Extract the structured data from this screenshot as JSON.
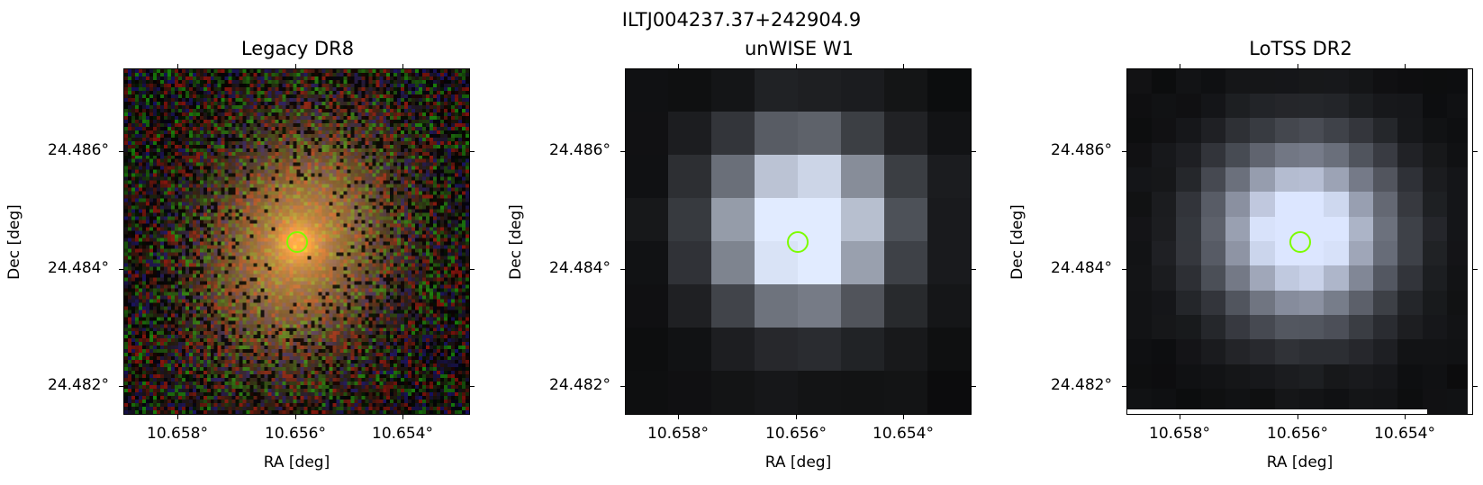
{
  "figure": {
    "title": "ILTJ004237.37+242904.9"
  },
  "panels": [
    {
      "title": "Legacy DR8",
      "xlabel": "RA [deg]",
      "ylabel": "Dec [deg]"
    },
    {
      "title": "unWISE W1",
      "xlabel": "RA [deg]",
      "ylabel": "Dec [deg]"
    },
    {
      "title": "LoTSS DR2",
      "xlabel": "RA [deg]",
      "ylabel": "Dec [deg]"
    }
  ],
  "axes": {
    "x_ticks": [
      "10.658°",
      "10.656°",
      "10.654°"
    ],
    "y_ticks": [
      "24.486°",
      "24.484°",
      "24.482°"
    ]
  },
  "source_marker": {
    "ra": 10.6557,
    "dec": 24.4845,
    "color": "#7cfc00"
  }
}
